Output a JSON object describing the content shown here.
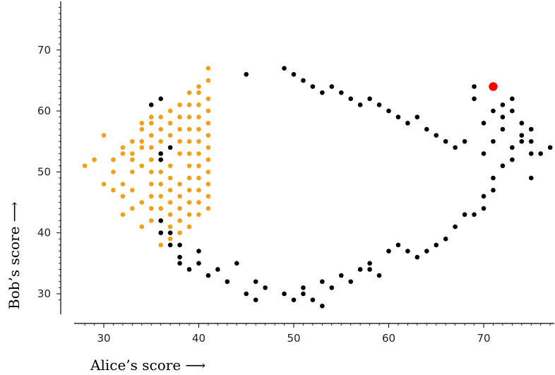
{
  "chart_data": {
    "type": "scatter",
    "xlabel": "Alice’s score ⟶",
    "ylabel": "Bob’s score ⟶",
    "xlim": [
      27,
      77.5
    ],
    "ylim": [
      27,
      78
    ],
    "x_ticks": [
      30,
      40,
      50,
      60,
      70
    ],
    "y_ticks": [
      30,
      40,
      50,
      60,
      70
    ],
    "grid": false,
    "colors": {
      "bob_wins": "#f2a01a",
      "alice_wins": "#000000",
      "highlight": "#ff0000"
    },
    "series": [
      {
        "points": [
          [
            28,
            51
          ],
          [
            29,
            52
          ],
          [
            30,
            48
          ],
          [
            30,
            56
          ],
          [
            31,
            50
          ],
          [
            31,
            52
          ],
          [
            31,
            47
          ],
          [
            32,
            43
          ],
          [
            32,
            46
          ],
          [
            32,
            48
          ],
          [
            32,
            53
          ],
          [
            32,
            54
          ],
          [
            33,
            44
          ],
          [
            33,
            47
          ],
          [
            33,
            50
          ],
          [
            33,
            52
          ],
          [
            33,
            53
          ],
          [
            33,
            55
          ],
          [
            34,
            41
          ],
          [
            34,
            45
          ],
          [
            34,
            51
          ],
          [
            34,
            54
          ],
          [
            34,
            55
          ],
          [
            34,
            57
          ],
          [
            34,
            58
          ],
          [
            35,
            42
          ],
          [
            35,
            44
          ],
          [
            35,
            46
          ],
          [
            35,
            48
          ],
          [
            35,
            50
          ],
          [
            35,
            52
          ],
          [
            35,
            54
          ],
          [
            35,
            56
          ],
          [
            35,
            58
          ],
          [
            35,
            59
          ],
          [
            36,
            38
          ],
          [
            36,
            40
          ],
          [
            36,
            42
          ],
          [
            36,
            44
          ],
          [
            36,
            46
          ],
          [
            36,
            48
          ],
          [
            36,
            50
          ],
          [
            36,
            55
          ],
          [
            36,
            57
          ],
          [
            36,
            59
          ],
          [
            37,
            39
          ],
          [
            37,
            41
          ],
          [
            37,
            43
          ],
          [
            37,
            45
          ],
          [
            37,
            47
          ],
          [
            37,
            49
          ],
          [
            37,
            51
          ],
          [
            37,
            56
          ],
          [
            37,
            58
          ],
          [
            37,
            60
          ],
          [
            38,
            40
          ],
          [
            38,
            42
          ],
          [
            38,
            44
          ],
          [
            38,
            46
          ],
          [
            38,
            48
          ],
          [
            38,
            53
          ],
          [
            38,
            55
          ],
          [
            38,
            57
          ],
          [
            38,
            59
          ],
          [
            38,
            61
          ],
          [
            39,
            41
          ],
          [
            39,
            43
          ],
          [
            39,
            45
          ],
          [
            39,
            47
          ],
          [
            39,
            49
          ],
          [
            39,
            51
          ],
          [
            39,
            53
          ],
          [
            39,
            55
          ],
          [
            39,
            57
          ],
          [
            39,
            59
          ],
          [
            39,
            61
          ],
          [
            39,
            63
          ],
          [
            40,
            43
          ],
          [
            40,
            45
          ],
          [
            40,
            47
          ],
          [
            40,
            49
          ],
          [
            40,
            51
          ],
          [
            40,
            53
          ],
          [
            40,
            55
          ],
          [
            40,
            57
          ],
          [
            40,
            59
          ],
          [
            40,
            61
          ],
          [
            40,
            63
          ],
          [
            40,
            64
          ],
          [
            41,
            44
          ],
          [
            41,
            46
          ],
          [
            41,
            48
          ],
          [
            41,
            50
          ],
          [
            41,
            52
          ],
          [
            41,
            54
          ],
          [
            41,
            56
          ],
          [
            41,
            58
          ],
          [
            41,
            60
          ],
          [
            41,
            62
          ],
          [
            41,
            65
          ],
          [
            41,
            67
          ]
        ],
        "color": "#f2a01a"
      },
      {
        "points": [
          [
            35,
            61
          ],
          [
            36,
            62
          ],
          [
            36,
            53
          ],
          [
            36,
            52
          ],
          [
            36,
            42
          ],
          [
            36,
            40
          ],
          [
            37,
            54
          ],
          [
            37,
            40
          ],
          [
            37,
            38
          ],
          [
            38,
            38
          ],
          [
            38,
            35
          ],
          [
            38,
            36
          ],
          [
            39,
            34
          ],
          [
            40,
            35
          ],
          [
            40,
            37
          ],
          [
            41,
            33
          ],
          [
            42,
            34
          ],
          [
            43,
            32
          ],
          [
            44,
            35
          ],
          [
            45,
            30
          ],
          [
            46,
            29
          ],
          [
            46,
            32
          ],
          [
            47,
            31
          ],
          [
            49,
            30
          ],
          [
            50,
            29
          ],
          [
            51,
            30
          ],
          [
            51,
            31
          ],
          [
            52,
            29
          ],
          [
            53,
            28
          ],
          [
            53,
            32
          ],
          [
            54,
            31
          ],
          [
            55,
            33
          ],
          [
            56,
            32
          ],
          [
            57,
            34
          ],
          [
            58,
            34
          ],
          [
            58,
            35
          ],
          [
            59,
            33
          ],
          [
            60,
            37
          ],
          [
            61,
            38
          ],
          [
            62,
            37
          ],
          [
            63,
            36
          ],
          [
            64,
            37
          ],
          [
            65,
            38
          ],
          [
            66,
            39
          ],
          [
            67,
            41
          ],
          [
            68,
            43
          ],
          [
            69,
            43
          ],
          [
            70,
            44
          ],
          [
            70,
            46
          ],
          [
            71,
            47
          ],
          [
            71,
            49
          ],
          [
            72,
            51
          ],
          [
            73,
            52
          ],
          [
            73,
            54
          ],
          [
            74,
            55
          ],
          [
            74,
            56
          ],
          [
            75,
            49
          ],
          [
            75,
            53
          ],
          [
            75,
            57
          ],
          [
            76,
            53
          ],
          [
            77,
            54
          ],
          [
            69,
            62
          ],
          [
            69,
            64
          ],
          [
            70,
            58
          ],
          [
            71,
            60
          ],
          [
            72,
            59
          ],
          [
            72,
            61
          ],
          [
            73,
            60
          ],
          [
            73,
            62
          ],
          [
            74,
            58
          ],
          [
            75,
            55
          ],
          [
            72,
            57
          ],
          [
            71,
            55
          ],
          [
            70,
            53
          ],
          [
            45,
            66
          ],
          [
            49,
            67
          ],
          [
            50,
            66
          ],
          [
            51,
            65
          ],
          [
            52,
            64
          ],
          [
            53,
            63
          ],
          [
            54,
            64
          ],
          [
            55,
            63
          ],
          [
            56,
            62
          ],
          [
            57,
            61
          ],
          [
            58,
            62
          ],
          [
            59,
            61
          ],
          [
            60,
            60
          ],
          [
            61,
            59
          ],
          [
            62,
            58
          ],
          [
            63,
            59
          ],
          [
            64,
            57
          ],
          [
            65,
            56
          ],
          [
            66,
            55
          ],
          [
            67,
            54
          ],
          [
            68,
            55
          ]
        ],
        "color": "#000000"
      },
      {
        "points": [
          [
            71,
            64
          ]
        ],
        "color": "#ff0000"
      }
    ]
  }
}
